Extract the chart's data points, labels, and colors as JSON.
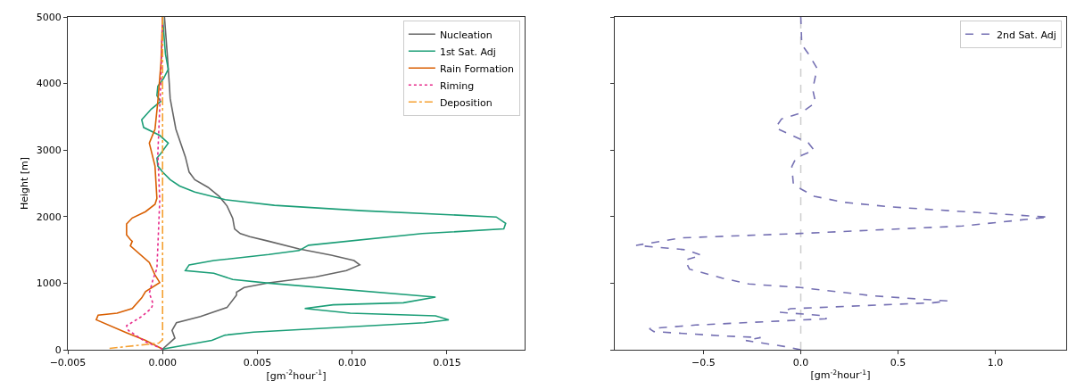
{
  "chart_data": [
    {
      "type": "line",
      "xlabel": "[gm$^{-2}$hour$^{-1}$]",
      "ylabel": "Height [m]",
      "xlim": [
        -0.005,
        0.0191
      ],
      "ylim": [
        0,
        5000
      ],
      "xticks": [
        {
          "value": -0.005,
          "label": "−0.005"
        },
        {
          "value": 0,
          "label": "0.000"
        },
        {
          "value": 0.005,
          "label": "0.005"
        },
        {
          "value": 0.01,
          "label": "0.010"
        },
        {
          "value": 0.015,
          "label": "0.015"
        }
      ],
      "yticks": [
        0,
        1000,
        2000,
        3000,
        4000,
        5000
      ],
      "grid": false,
      "legend": "top right",
      "marker": "none",
      "series": [
        {
          "name": "Nucleation",
          "color": "#666666",
          "line_style": "solid",
          "x": [
            0,
            0.00065,
            0.0005,
            0.00073,
            0.002,
            0.0034,
            0.0039,
            0.0039,
            0.0043,
            0.0056,
            0.0081,
            0.0097,
            0.0104,
            0.0101,
            0.0089,
            0.0072,
            0.0056,
            0.0046,
            0.0041,
            0.0038,
            0.0037,
            0.0034,
            0.003,
            0.0024,
            0.0017,
            0.0014,
            0.0012,
            0.0007,
            0.0004,
            0.00035,
            0.00025,
            0.0001
          ],
          "values": [
            10,
            175,
            290,
            405,
            500,
            635,
            820,
            865,
            935,
            1005,
            1095,
            1190,
            1275,
            1340,
            1420,
            1515,
            1630,
            1700,
            1745,
            1815,
            1975,
            2160,
            2300,
            2440,
            2555,
            2670,
            2900,
            3315,
            3775,
            4010,
            4425,
            5000
          ]
        },
        {
          "name": "1st Sat. Adj",
          "color": "#1b9e77",
          "line_style": "solid",
          "x": [
            0,
            0.0026,
            0.0033,
            0.0048,
            0.0138,
            0.0151,
            0.0144,
            0.0099,
            0.0075,
            0.009,
            0.0127,
            0.0144,
            0.0056,
            0.0037,
            0.0027,
            0.0012,
            0.0014,
            0.0027,
            0.0056,
            0.0072,
            0.0077,
            0.0137,
            0.018,
            0.0181,
            0.0176,
            0.0105,
            0.0059,
            0.0033,
            0.0017,
            0.0009,
            0.0004,
            0,
            -0.00025,
            -0.0003,
            -0.0001,
            0.0003,
            -0.00015,
            -0.001,
            -0.0011,
            -0.0006,
            -0.0001,
            -0.0003,
            -0.00025,
            5e-05,
            0.0003,
            0.00015,
            0
          ],
          "values": [
            10,
            140,
            220,
            265,
            405,
            450,
            510,
            550,
            620,
            675,
            705,
            790,
            1000,
            1055,
            1150,
            1190,
            1275,
            1340,
            1430,
            1490,
            1570,
            1745,
            1815,
            1900,
            1995,
            2090,
            2170,
            2255,
            2370,
            2460,
            2555,
            2670,
            2760,
            2880,
            2945,
            3105,
            3220,
            3340,
            3455,
            3615,
            3730,
            3820,
            3960,
            4075,
            4215,
            4445,
            5000
          ]
        },
        {
          "name": "Rain Formation",
          "color": "#d95f02",
          "line_style": "solid",
          "x": [
            0,
            -0.0009,
            -0.0019,
            -0.0035,
            -0.0034,
            -0.0024,
            -0.0016,
            -0.0011,
            -0.0009,
            -0.00015,
            -0.0004,
            -0.0007,
            -0.0017,
            -0.0016,
            -0.0017,
            -0.0019,
            -0.0019,
            -0.0016,
            -0.0009,
            -0.0004,
            -0.0003,
            -0.0004,
            -0.0007,
            -0.0004,
            -0.00025,
            -8e-05,
            0
          ],
          "values": [
            10,
            140,
            255,
            450,
            520,
            550,
            620,
            780,
            875,
            1010,
            1125,
            1310,
            1560,
            1630,
            1655,
            1725,
            1890,
            1980,
            2075,
            2185,
            2275,
            2760,
            3105,
            3315,
            3730,
            4330,
            5000
          ]
        },
        {
          "name": "Riming",
          "color": "#e7298a",
          "line_style": "dotted",
          "x": [
            0,
            -0.0009,
            -0.0018,
            -0.0019,
            -0.0011,
            -0.0006,
            -0.0005,
            -0.0007,
            -0.0005,
            -0.0003,
            -0.00025,
            -0.00015,
            -0.00025,
            -0.00015,
            -8e-05,
            0
          ],
          "values": [
            10,
            120,
            290,
            360,
            500,
            620,
            690,
            850,
            1060,
            1220,
            1545,
            2250,
            2945,
            3640,
            4100,
            5000
          ]
        },
        {
          "name": "Deposition",
          "color": "#f5a031",
          "line_style": "dashdot",
          "x": [
            -0.0028,
            -0.0015,
            -0.0002,
            0,
            0
          ],
          "values": [
            20,
            60,
            100,
            150,
            5000
          ]
        }
      ]
    },
    {
      "type": "line",
      "xlabel": "[gm$^{-2}$hour$^{-1}$]",
      "xlim": [
        -0.956,
        1.364
      ],
      "ylim": [
        0,
        5000
      ],
      "xticks": [
        {
          "value": -0.5,
          "label": "−0.5"
        },
        {
          "value": 0,
          "label": "0.0"
        },
        {
          "value": 0.5,
          "label": "0.5"
        },
        {
          "value": 1,
          "label": "1.0"
        }
      ],
      "yticks": [
        {
          "value": 0,
          "label": null
        },
        {
          "value": 1000,
          "label": null
        },
        {
          "value": 2000,
          "label": null
        },
        {
          "value": 3000,
          "label": null
        },
        {
          "value": 4000,
          "label": null
        },
        {
          "value": 5000,
          "label": null
        }
      ],
      "tick_labels": "x",
      "grid": false,
      "legend": "top right",
      "marker": "none",
      "ref_lines": [
        {
          "axis": "x",
          "value": 0,
          "color": "#cccccc",
          "line_style": "dashed"
        }
      ],
      "series": [
        {
          "name": "2nd Sat. Adj",
          "color": "#7570b3",
          "line_style": "dashed",
          "x": [
            0,
            -0.084,
            -0.282,
            -0.206,
            -0.389,
            -0.755,
            -0.778,
            -0.541,
            0.13,
            0.13,
            -0.107,
            -0.053,
            0.679,
            0.755,
            0.374,
            0,
            -0.267,
            -0.404,
            -0.572,
            -0.595,
            -0.511,
            -0.587,
            -0.846,
            -0.617,
            0,
            0.831,
            1.273,
            0.983,
            0.45,
            0.221,
            0.069,
            0,
            -0.038,
            -0.046,
            -0.023,
            0.069,
            0.038,
            -0.13,
            -0.099,
            0,
            0.076,
            0.061,
            0.084,
            0.038,
            0.005,
            0
          ],
          "values": [
            0,
            49,
            139,
            183,
            206,
            273,
            317,
            371,
            465,
            509,
            563,
            617,
            706,
            733,
            809,
            934,
            988,
            1077,
            1211,
            1345,
            1421,
            1501,
            1568,
            1680,
            1747,
            1859,
            1993,
            2047,
            2149,
            2216,
            2306,
            2417,
            2484,
            2753,
            2887,
            2998,
            3110,
            3333,
            3467,
            3557,
            3713,
            3914,
            4227,
            4451,
            4585,
            5000
          ]
        }
      ]
    }
  ]
}
